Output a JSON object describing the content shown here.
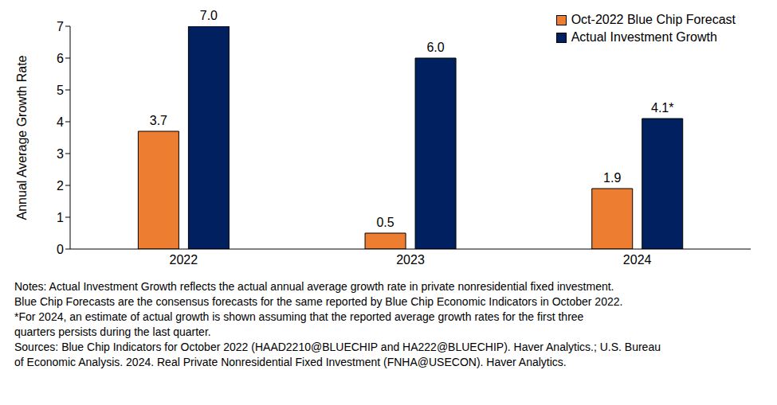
{
  "chart_data": {
    "type": "bar",
    "categories": [
      "2022",
      "2023",
      "2024"
    ],
    "series": [
      {
        "name": "Oct-2022 Blue Chip Forecast",
        "color": "#ED7D31",
        "values": [
          3.7,
          0.5,
          1.9
        ],
        "value_labels": [
          "3.7",
          "0.5",
          "1.9"
        ]
      },
      {
        "name": "Actual Investment Growth",
        "color": "#002060",
        "values": [
          7.0,
          6.0,
          4.1
        ],
        "value_labels": [
          "7.0",
          "6.0",
          "4.1*"
        ]
      }
    ],
    "ylabel": "Annual Average Growth Rate",
    "ylim": [
      0,
      7
    ],
    "yticks": [
      0,
      1,
      2,
      3,
      4,
      5,
      6,
      7
    ],
    "grid": false,
    "legend": "upper right",
    "data_labels": true,
    "annotations": [
      "Notes: Actual Investment Growth reflects the actual annual average growth rate in private nonresidential fixed investment.",
      "Blue Chip Forecasts are the consensus forecasts for the same reported by Blue Chip Economic Indicators in October 2022.",
      "*For 2024, an estimate of actual growth is shown assuming that the reported average growth rates for the first three",
      "quarters persists during the last quarter.",
      "Sources: Blue Chip Indicators for October 2022 (HAAD2210@BLUECHIP and HA222@BLUECHIP). Haver Analytics.; U.S. Bureau",
      "of Economic Analysis. 2024. Real Private Nonresidential Fixed Investment (FNHA@USECON). Haver Analytics."
    ]
  }
}
